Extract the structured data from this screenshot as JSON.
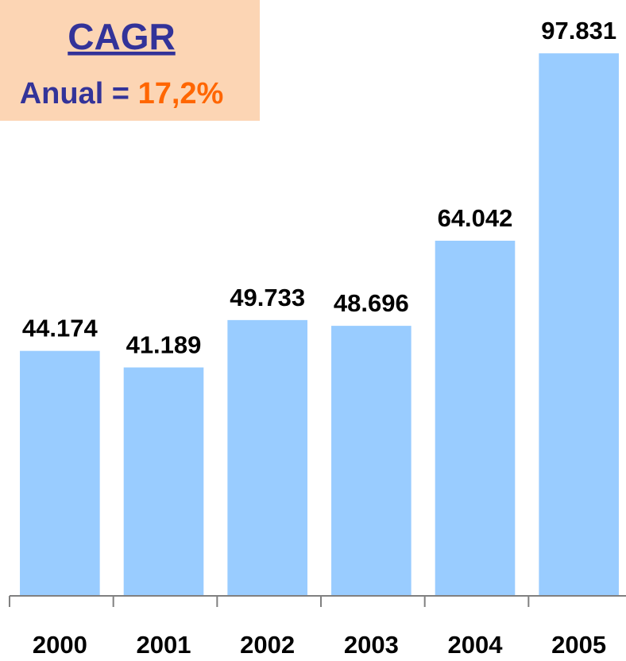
{
  "chart_data": {
    "type": "bar",
    "annotation": {
      "title": "CAGR",
      "label": "Anual =",
      "value_label": "17,2%"
    },
    "categories": [
      "2000",
      "2001",
      "2002",
      "2003",
      "2004",
      "2005"
    ],
    "values": [
      44174,
      41189,
      49733,
      48696,
      64042,
      97831
    ],
    "value_labels": [
      "44.174",
      "41.189",
      "49.733",
      "48.696",
      "64.042",
      "97.831"
    ],
    "color": "#99ccff",
    "ylim": [
      0,
      100000
    ]
  }
}
